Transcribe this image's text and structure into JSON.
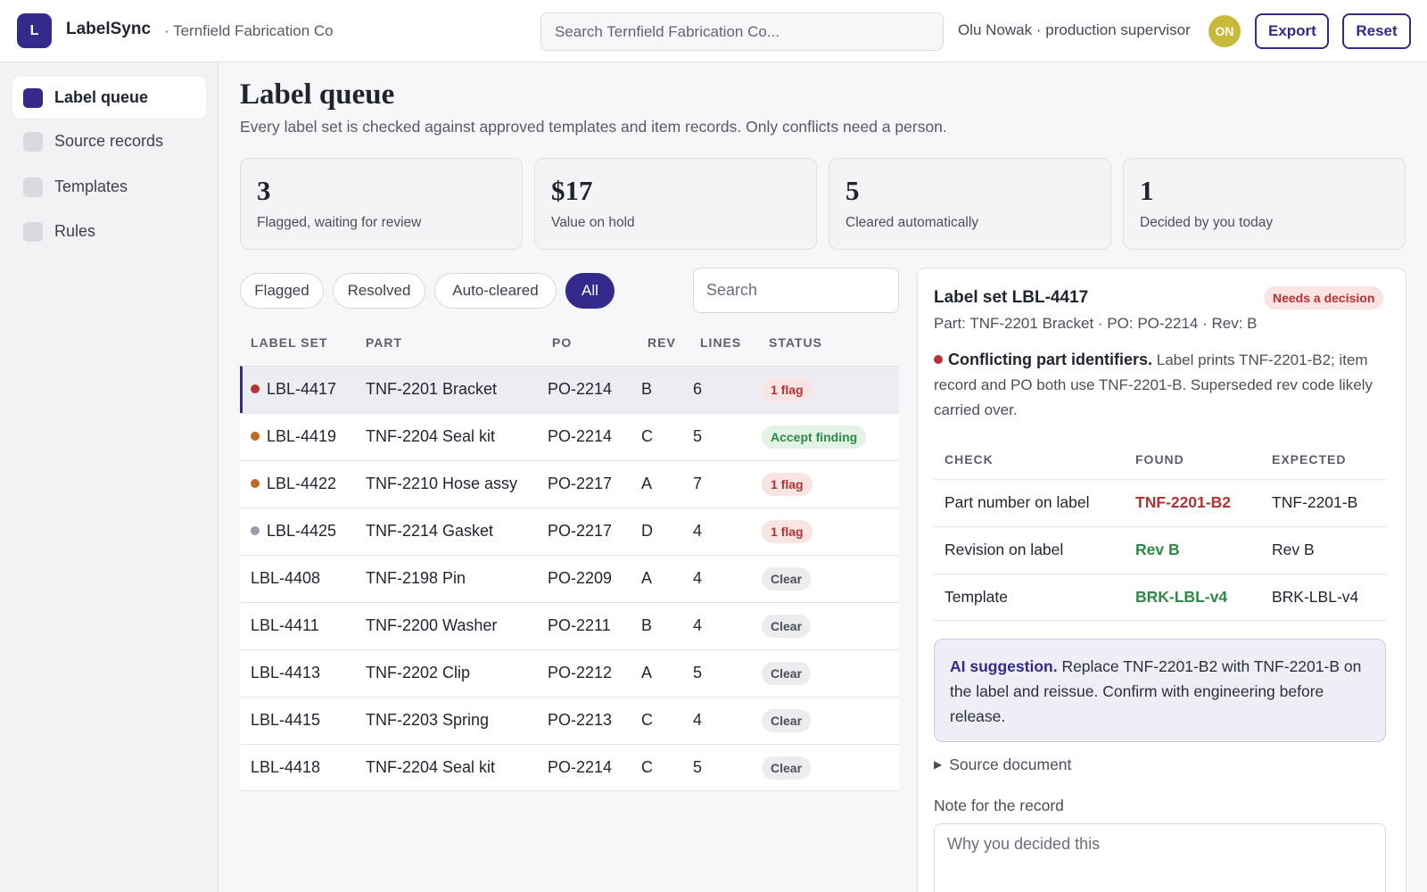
{
  "app": {
    "logo_letter": "L",
    "name": "LabelSync",
    "org": "· Ternfield Fabrication Co"
  },
  "header": {
    "search_placeholder": "Search Ternfield Fabrication Co...",
    "user": "Olu Nowak · production supervisor",
    "avatar_initials": "ON",
    "export_label": "Export",
    "reset_label": "Reset"
  },
  "sidebar": {
    "items": [
      {
        "label": "Label queue",
        "active": true
      },
      {
        "label": "Source records",
        "active": false
      },
      {
        "label": "Templates",
        "active": false
      },
      {
        "label": "Rules",
        "active": false
      }
    ]
  },
  "page": {
    "title": "Label queue",
    "subtitle": "Every label set is checked against approved templates and item records. Only conflicts need a person."
  },
  "stats": [
    {
      "value": "3",
      "label": "Flagged, waiting for review"
    },
    {
      "value": "$17",
      "label": "Value on hold"
    },
    {
      "value": "5",
      "label": "Cleared automatically"
    },
    {
      "value": "1",
      "label": "Decided by you today"
    }
  ],
  "filters": [
    {
      "label": "Flagged",
      "active": false
    },
    {
      "label": "Resolved",
      "active": false
    },
    {
      "label": "Auto-cleared",
      "active": false
    },
    {
      "label": "All",
      "active": true
    }
  ],
  "table_search_placeholder": "Search",
  "table": {
    "headers": [
      "LABEL SET",
      "PART",
      "PO",
      "REV",
      "LINES",
      "STATUS"
    ],
    "rows": [
      {
        "label_set": "LBL-4417",
        "part": "TNF-2201 Bracket",
        "po": "PO-2214",
        "rev": "B",
        "lines": "6",
        "status": "1 flag",
        "kind": "flag",
        "dot": "#b83232"
      },
      {
        "label_set": "LBL-4419",
        "part": "TNF-2204 Seal kit",
        "po": "PO-2214",
        "rev": "C",
        "lines": "5",
        "status": "Accept finding",
        "kind": "accept",
        "dot": "#c06a1f"
      },
      {
        "label_set": "LBL-4422",
        "part": "TNF-2210 Hose assy",
        "po": "PO-2217",
        "rev": "A",
        "lines": "7",
        "status": "1 flag",
        "kind": "flag",
        "dot": "#c06a1f"
      },
      {
        "label_set": "LBL-4425",
        "part": "TNF-2214 Gasket",
        "po": "PO-2217",
        "rev": "D",
        "lines": "4",
        "status": "1 flag",
        "kind": "flag",
        "dot": "#9a9aa8"
      },
      {
        "label_set": "LBL-4408",
        "part": "TNF-2198 Pin",
        "po": "PO-2209",
        "rev": "A",
        "lines": "4",
        "status": "Clear",
        "kind": "clear",
        "dot": ""
      },
      {
        "label_set": "LBL-4411",
        "part": "TNF-2200 Washer",
        "po": "PO-2211",
        "rev": "B",
        "lines": "4",
        "status": "Clear",
        "kind": "clear",
        "dot": ""
      },
      {
        "label_set": "LBL-4413",
        "part": "TNF-2202 Clip",
        "po": "PO-2212",
        "rev": "A",
        "lines": "5",
        "status": "Clear",
        "kind": "clear",
        "dot": ""
      },
      {
        "label_set": "LBL-4415",
        "part": "TNF-2203 Spring",
        "po": "PO-2213",
        "rev": "C",
        "lines": "4",
        "status": "Clear",
        "kind": "clear",
        "dot": ""
      },
      {
        "label_set": "LBL-4418",
        "part": "TNF-2204 Seal kit",
        "po": "PO-2214",
        "rev": "C",
        "lines": "5",
        "status": "Clear",
        "kind": "clear",
        "dot": ""
      }
    ]
  },
  "detail": {
    "title": "Label set LBL-4417",
    "status": "Needs a decision",
    "meta": "Part: TNF-2201 Bracket · PO: PO-2214 · Rev: B",
    "finding_title": "Conflicting part identifiers.",
    "finding_text": "Label prints TNF-2201-B2; item record and PO both use TNF-2201-B. Superseded rev code likely carried over.",
    "checks_headers": [
      "CHECK",
      "FOUND",
      "EXPECTED"
    ],
    "checks": [
      {
        "check": "Part number on label",
        "found": "TNF-2201-B2",
        "expected": "TNF-2201-B",
        "ok": false
      },
      {
        "check": "Revision on label",
        "found": "Rev B",
        "expected": "Rev B",
        "ok": true
      },
      {
        "check": "Template",
        "found": "BRK-LBL-v4",
        "expected": "BRK-LBL-v4",
        "ok": true
      }
    ],
    "ai_title": "AI suggestion.",
    "ai_text": "Replace TNF-2201-B2 with TNF-2201-B on the label and reissue. Confirm with engineering before release.",
    "source_doc": "Source document",
    "note_label": "Note for the record",
    "note_placeholder": "Why you decided this"
  },
  "colors": {
    "accent": "#332a8c",
    "flag": "#b83232",
    "ok": "#2c8a45"
  }
}
